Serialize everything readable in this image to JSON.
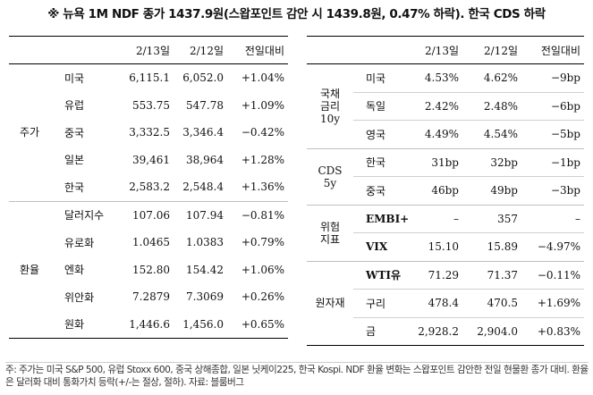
{
  "title": "※ 뉴욕 1M NDF 종가 1437.9원(스왑포인트 감안 시 1439.8원, 0.47% 하락). 한국 CDS 하락",
  "left": {
    "headers": [
      "2/13일",
      "2/12일",
      "전일대비"
    ],
    "groups": [
      {
        "name": "주가",
        "rows": [
          {
            "label": "미국",
            "d13": "6,115.1",
            "d12": "6,052.0",
            "chg": "+1.04%"
          },
          {
            "label": "유럽",
            "d13": "553.75",
            "d12": "547.78",
            "chg": "+1.09%"
          },
          {
            "label": "중국",
            "d13": "3,332.5",
            "d12": "3,346.4",
            "chg": "−0.42%"
          },
          {
            "label": "일본",
            "d13": "39,461",
            "d12": "38,964",
            "chg": "+1.28%"
          },
          {
            "label": "한국",
            "d13": "2,583.2",
            "d12": "2,548.4",
            "chg": "+1.36%"
          }
        ]
      },
      {
        "name": "환율",
        "rows": [
          {
            "label": "달러지수",
            "d13": "107.06",
            "d12": "107.94",
            "chg": "−0.81%"
          },
          {
            "label": "유로화",
            "d13": "1.0465",
            "d12": "1.0383",
            "chg": "+0.79%"
          },
          {
            "label": "엔화",
            "d13": "152.80",
            "d12": "154.42",
            "chg": "+1.06%"
          },
          {
            "label": "위안화",
            "d13": "7.2879",
            "d12": "7.3069",
            "chg": "+0.26%"
          },
          {
            "label": "원화",
            "d13": "1,446.6",
            "d12": "1,456.0",
            "chg": "+0.65%"
          }
        ]
      }
    ]
  },
  "right": {
    "headers": [
      "2/13일",
      "2/12일",
      "전일대비"
    ],
    "groups": [
      {
        "name": "국채\n금리\n10y",
        "rows": [
          {
            "label": "미국",
            "d13": "4.53%",
            "d12": "4.62%",
            "chg": "−9bp"
          },
          {
            "label": "독일",
            "d13": "2.42%",
            "d12": "2.48%",
            "chg": "−6bp"
          },
          {
            "label": "영국",
            "d13": "4.49%",
            "d12": "4.54%",
            "chg": "−5bp"
          }
        ]
      },
      {
        "name": "CDS\n5y",
        "rows": [
          {
            "label": "한국",
            "d13": "31bp",
            "d12": "32bp",
            "chg": "−1bp"
          },
          {
            "label": "중국",
            "d13": "46bp",
            "d12": "49bp",
            "chg": "−3bp"
          }
        ]
      },
      {
        "name": "위험\n지표",
        "rows": [
          {
            "label": "EMBI+",
            "d13": "–",
            "d12": "357",
            "chg": "–"
          },
          {
            "label": "VIX",
            "d13": "15.10",
            "d12": "15.89",
            "chg": "−4.97%"
          }
        ]
      },
      {
        "name": "원자재",
        "rows": [
          {
            "label": "WTI유",
            "d13": "71.29",
            "d12": "71.37",
            "chg": "−0.11%"
          },
          {
            "label": "구리",
            "d13": "478.4",
            "d12": "470.5",
            "chg": "+1.69%"
          },
          {
            "label": "금",
            "d13": "2,928.2",
            "d12": "2,904.0",
            "chg": "+0.83%"
          }
        ]
      }
    ]
  },
  "footnote": "주: 주가는 미국 S&P 500, 유럽 Stoxx 600, 중국 상해종합, 일본 닛케이225, 한국 Kospi. NDF 환율 변화는 스왑포인트 감안한 전일 현물환 종가 대비. 환율은 달러화 대비 통화가치 등락(+/-는 절상, 절하). 자료: 블룸버그"
}
